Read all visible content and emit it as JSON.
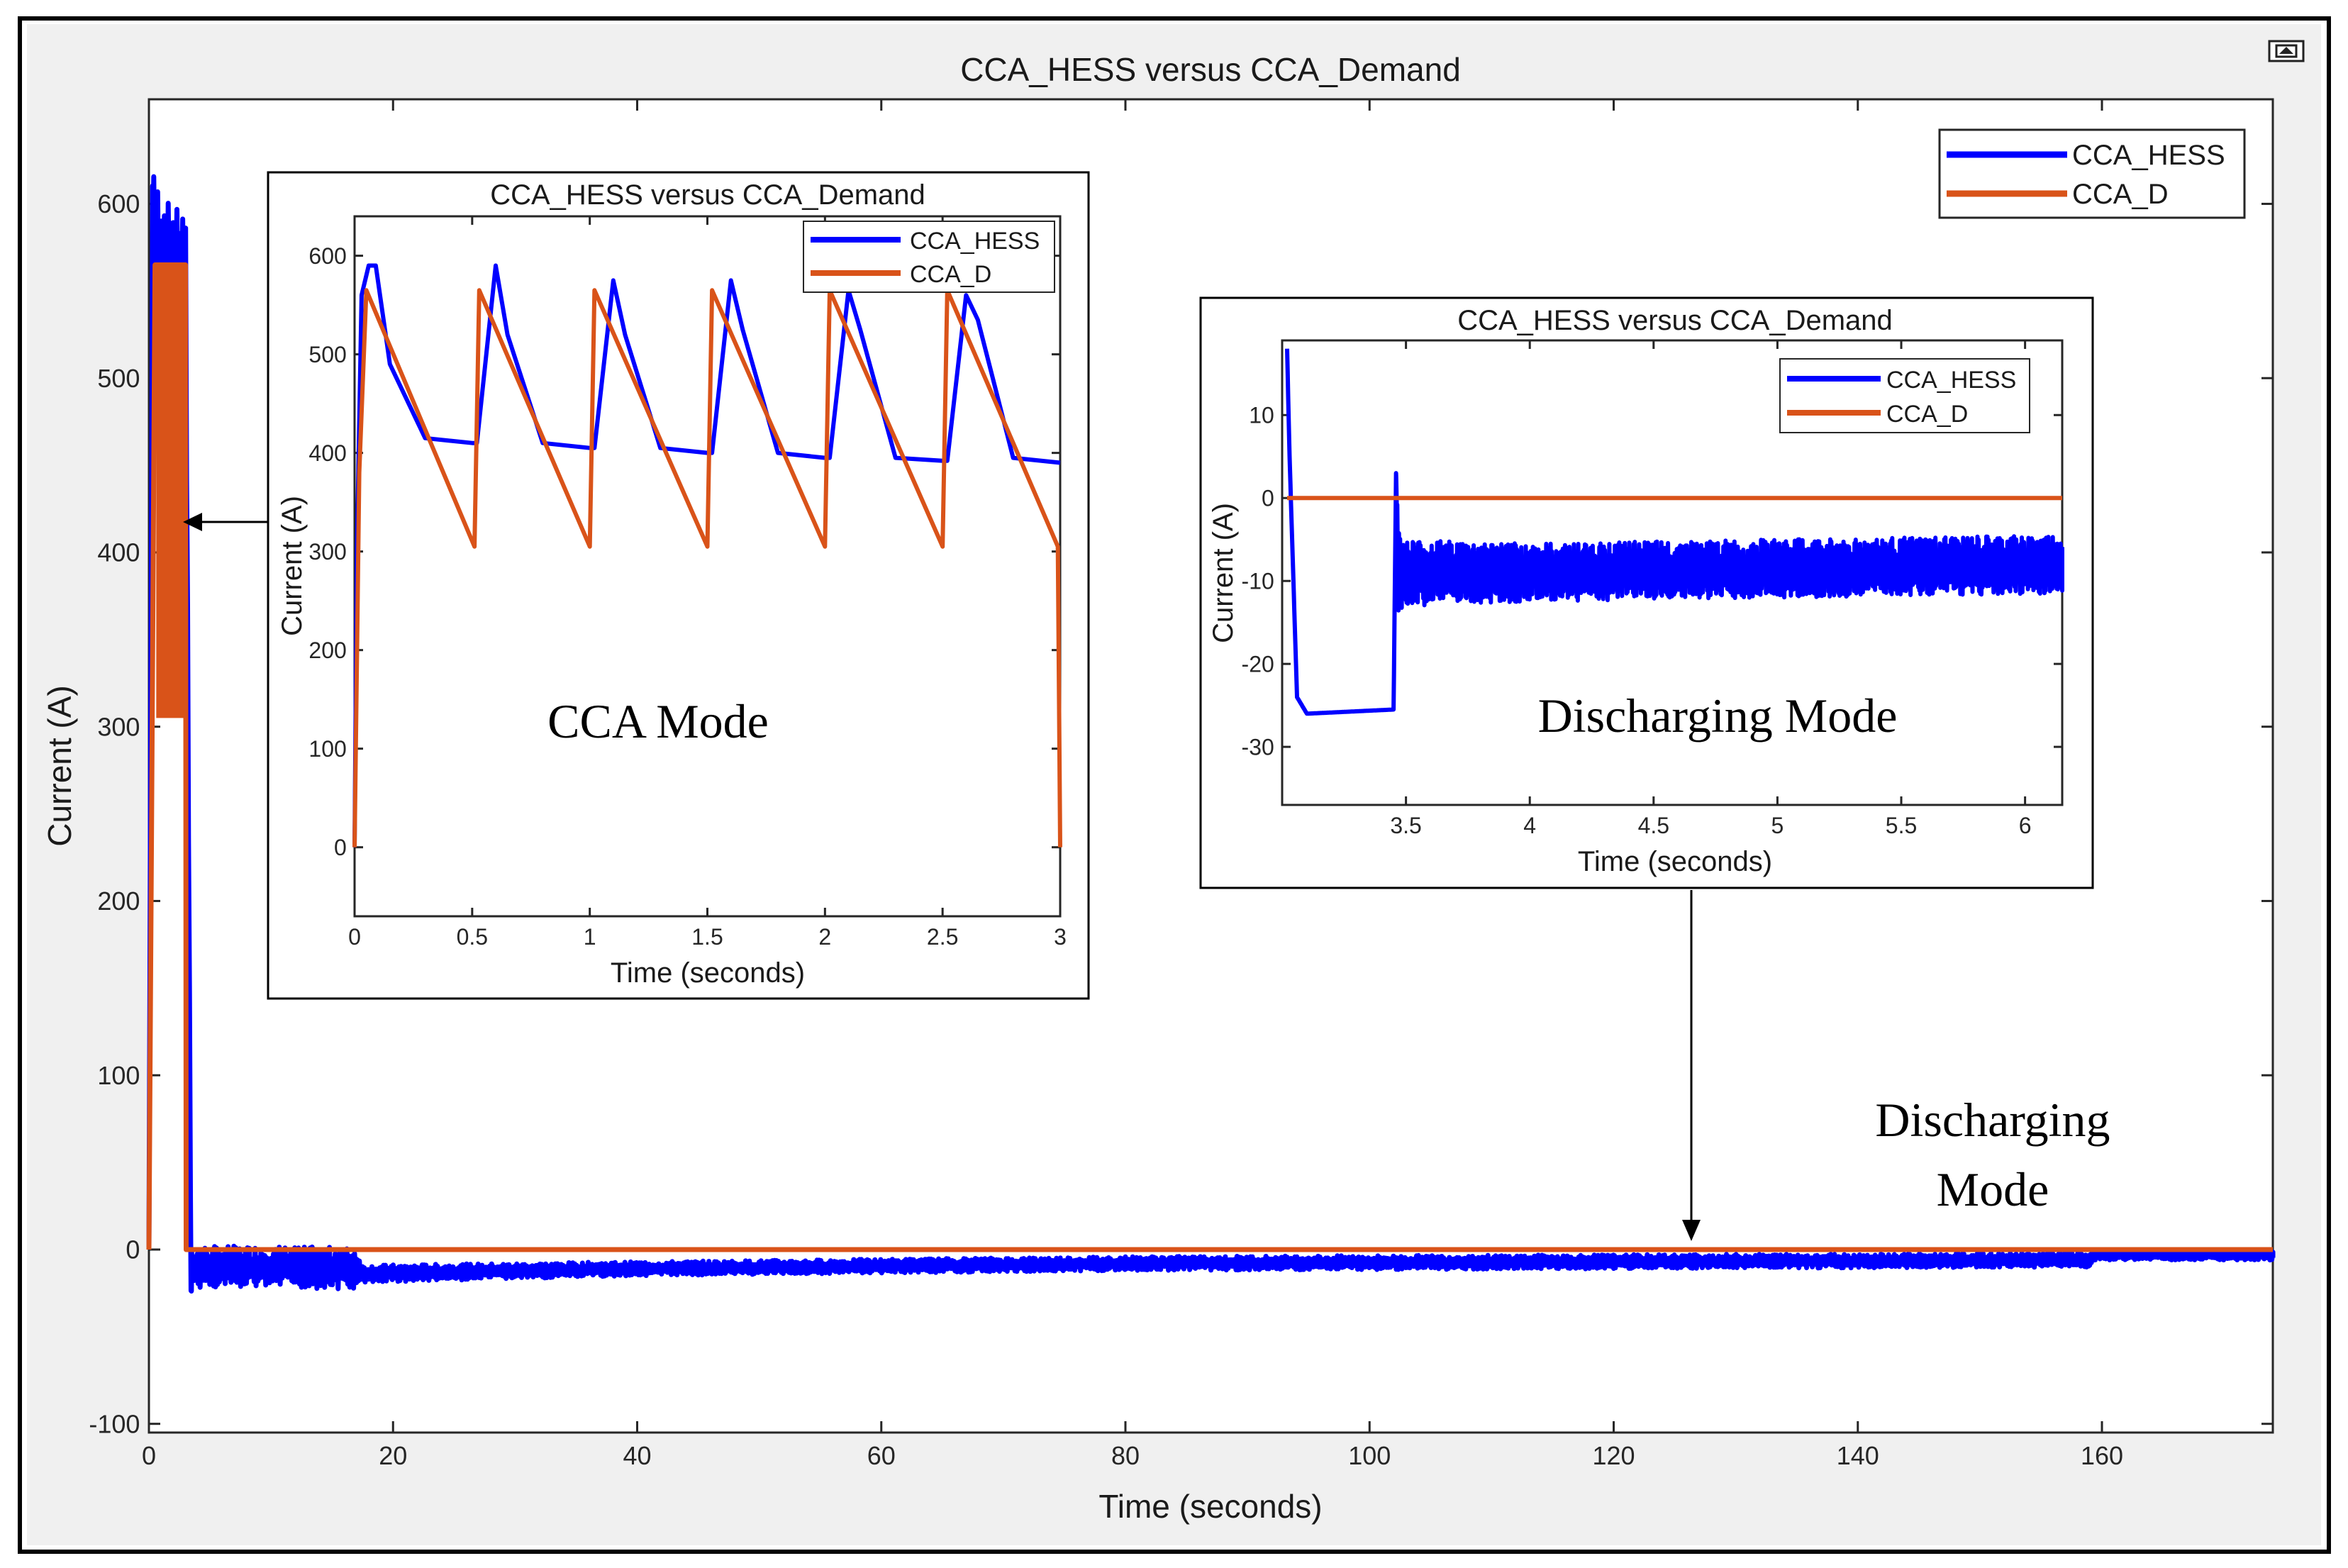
{
  "colors": {
    "hess": "#0000ff",
    "demand": "#d95319",
    "axis": "#262626",
    "grid": "#f0f0f0"
  },
  "toolbar": {
    "icon": "figure-restore-icon"
  },
  "chart_data": [
    {
      "id": "main",
      "type": "line",
      "title": "CCA_HESS versus CCA_Demand",
      "xlabel": "Time (seconds)",
      "ylabel": "Current (A)",
      "xlim": [
        0,
        174
      ],
      "ylim": [
        -105,
        660
      ],
      "xticks": [
        0,
        20,
        40,
        60,
        80,
        100,
        120,
        140,
        160
      ],
      "yticks": [
        -100,
        0,
        100,
        200,
        300,
        400,
        500,
        600
      ],
      "grid": false,
      "legend": {
        "position": "top-right",
        "entries": [
          "CCA_HESS",
          "CCA_D"
        ]
      },
      "series": [
        {
          "name": "CCA_HESS",
          "x": [
            0,
            0.3,
            1,
            2,
            3,
            3.45,
            3.5,
            10,
            17,
            17.5,
            40,
            80,
            120,
            159,
            159.5,
            174
          ],
          "y": [
            0,
            590,
            575,
            568,
            565,
            -26,
            -10,
            -10,
            -11,
            -14,
            -11,
            -8,
            -7,
            -6,
            -3,
            -3
          ],
          "noise": [
            0,
            30,
            30,
            30,
            30,
            4,
            12,
            12,
            12,
            5,
            4,
            4,
            4,
            4,
            3,
            3
          ]
        },
        {
          "name": "CCA_D",
          "x": [
            0,
            0.5,
            3,
            3.05,
            3.5,
            174
          ],
          "y": [
            0,
            565,
            565,
            0,
            0,
            0
          ],
          "band": {
            "x": [
              0.6,
              3.0
            ],
            "y": [
              305,
              565
            ]
          }
        }
      ],
      "annotations": {
        "cca_mode_arrow": "",
        "discharge_label": "Discharging Mode"
      }
    },
    {
      "id": "inset-cca",
      "type": "line",
      "title": "CCA_HESS versus CCA_Demand",
      "xlabel": "Time (seconds)",
      "ylabel": "Current (A)",
      "xlim": [
        0,
        3
      ],
      "ylim": [
        -70,
        640
      ],
      "xticks": [
        0,
        0.5,
        1,
        1.5,
        2,
        2.5,
        3
      ],
      "xticklabels": [
        "0",
        "0.5",
        "1",
        "1.5",
        "2",
        "2.5",
        "3"
      ],
      "yticks": [
        0,
        100,
        200,
        300,
        400,
        500,
        600
      ],
      "legend": {
        "position": "top-right",
        "entries": [
          "CCA_HESS",
          "CCA_D"
        ]
      },
      "mode_label": "CCA Mode",
      "series": [
        {
          "name": "CCA_HESS",
          "x": [
            0,
            0.01,
            0.03,
            0.06,
            0.09,
            0.15,
            0.3,
            0.5,
            0.52,
            0.6,
            0.65,
            0.8,
            1.0,
            1.02,
            1.1,
            1.15,
            1.3,
            1.5,
            1.52,
            1.6,
            1.65,
            1.8,
            2.0,
            2.02,
            2.1,
            2.15,
            2.3,
            2.5,
            2.52,
            2.6,
            2.65,
            2.8,
            3.0
          ],
          "y": [
            0,
            300,
            560,
            590,
            590,
            490,
            415,
            410,
            410,
            590,
            520,
            410,
            405,
            405,
            575,
            520,
            405,
            400,
            400,
            575,
            525,
            400,
            395,
            395,
            565,
            525,
            395,
            392,
            392,
            560,
            535,
            395,
            390
          ]
        },
        {
          "name": "CCA_D",
          "x": [
            0,
            0.02,
            0.05,
            0.51,
            0.53,
            1.0,
            1.02,
            1.5,
            1.52,
            2.0,
            2.02,
            2.5,
            2.52,
            2.99,
            3.0
          ],
          "y": [
            0,
            380,
            565,
            305,
            565,
            305,
            565,
            305,
            565,
            305,
            565,
            305,
            565,
            305,
            0
          ]
        }
      ]
    },
    {
      "id": "inset-discharge",
      "type": "line",
      "title": "CCA_HESS versus CCA_Demand",
      "xlabel": "Time (seconds)",
      "ylabel": "Current (A)",
      "xlim": [
        3.0,
        6.15
      ],
      "ylim": [
        -37,
        19
      ],
      "xticks": [
        3.5,
        4,
        4.5,
        5,
        5.5,
        6
      ],
      "xticklabels": [
        "3.5",
        "4",
        "4.5",
        "5",
        "5.5",
        "6"
      ],
      "yticks": [
        -30,
        -20,
        -10,
        0,
        10
      ],
      "legend": {
        "position": "top-right",
        "entries": [
          "CCA_HESS",
          "CCA_D"
        ]
      },
      "mode_label": "Discharging Mode",
      "series": [
        {
          "name": "CCA_HESS",
          "x": [
            3.02,
            3.03,
            3.06,
            3.1,
            3.45,
            3.46,
            3.47,
            3.5,
            4.0,
            5.0,
            6.15
          ],
          "y": [
            18,
            5,
            -24,
            -26,
            -25.5,
            3,
            -9,
            -9,
            -9,
            -8.5,
            -8
          ],
          "noise": [
            0,
            0,
            0,
            0,
            0,
            0,
            5,
            4,
            3.5,
            3.5,
            3.5
          ]
        },
        {
          "name": "CCA_D",
          "x": [
            3.02,
            6.15
          ],
          "y": [
            0,
            0
          ]
        }
      ]
    }
  ]
}
